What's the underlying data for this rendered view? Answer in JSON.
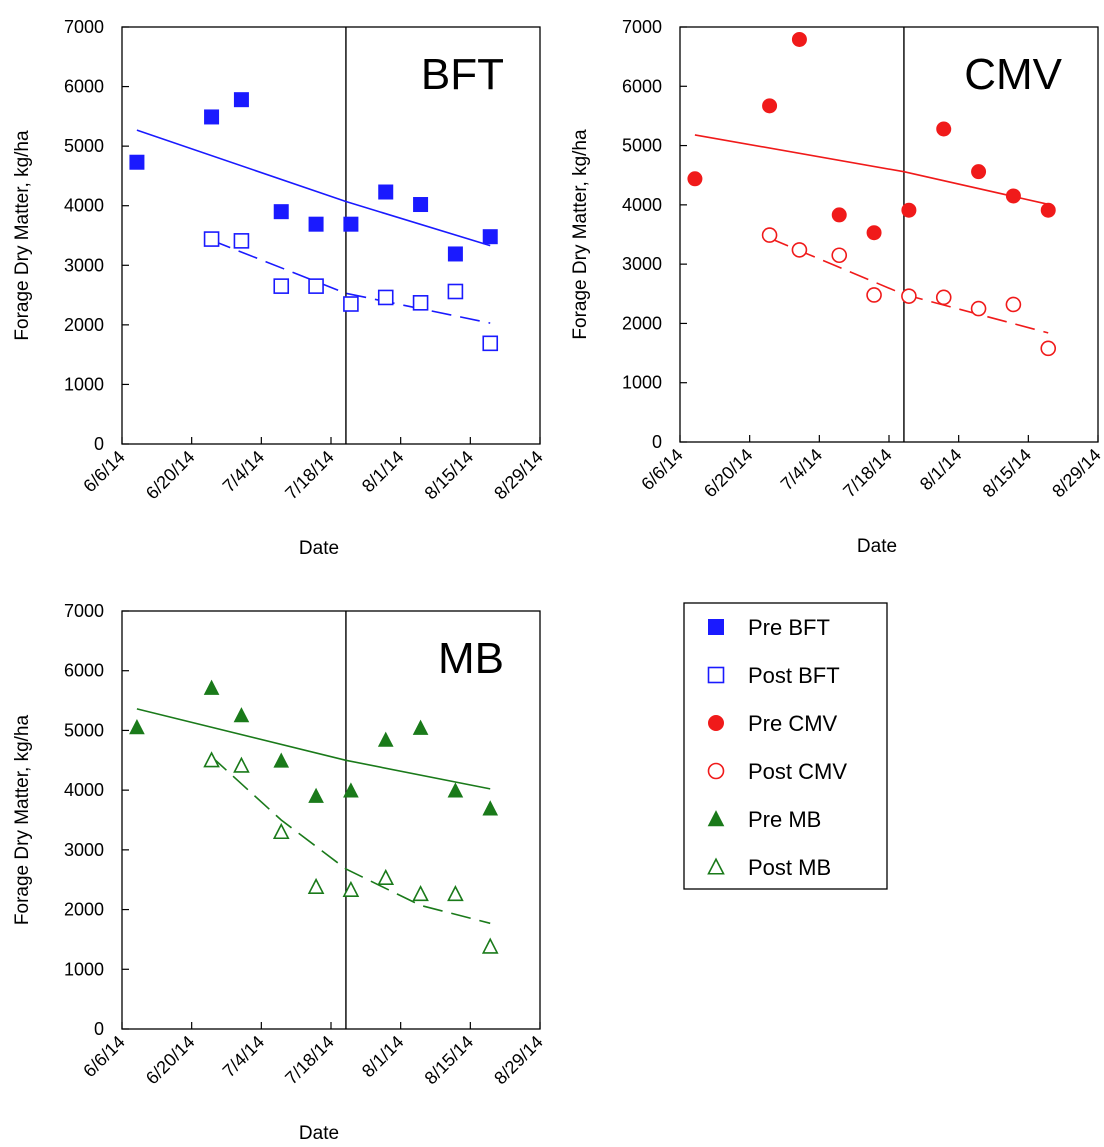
{
  "chart_data": [
    {
      "type": "scatter",
      "title": "BFT",
      "xlabel": "Date",
      "ylabel": "Forage Dry Matter, kg/ha",
      "x_ticks": [
        "6/6/14",
        "6/20/14",
        "7/4/14",
        "7/18/14",
        "8/1/14",
        "8/15/14",
        "8/29/14"
      ],
      "y_ticks": [
        "0",
        "1000",
        "2000",
        "3000",
        "4000",
        "5000",
        "6000",
        "7000"
      ],
      "xlim": [
        "2014-06-06",
        "2014-08-29"
      ],
      "ylim": [
        0,
        7000
      ],
      "vertical_line_date": "2014-07-21",
      "series": [
        {
          "name": "Pre BFT",
          "color": "#1a1aff",
          "marker": "square",
          "filled": true,
          "points": [
            {
              "date": "2014-06-09",
              "value": 4730
            },
            {
              "date": "2014-06-24",
              "value": 5490
            },
            {
              "date": "2014-06-30",
              "value": 5780
            },
            {
              "date": "2014-07-08",
              "value": 3900
            },
            {
              "date": "2014-07-15",
              "value": 3690
            },
            {
              "date": "2014-07-22",
              "value": 3690
            },
            {
              "date": "2014-07-29",
              "value": 4230
            },
            {
              "date": "2014-08-05",
              "value": 4020
            },
            {
              "date": "2014-08-12",
              "value": 3190
            },
            {
              "date": "2014-08-19",
              "value": 3480
            }
          ],
          "trend": {
            "style": "solid",
            "points": [
              {
                "date": "2014-06-09",
                "value": 5270
              },
              {
                "date": "2014-07-21",
                "value": 4070
              },
              {
                "date": "2014-08-19",
                "value": 3330
              }
            ]
          }
        },
        {
          "name": "Post BFT",
          "color": "#1a1aff",
          "marker": "square",
          "filled": false,
          "points": [
            {
              "date": "2014-06-24",
              "value": 3440
            },
            {
              "date": "2014-06-30",
              "value": 3410
            },
            {
              "date": "2014-07-08",
              "value": 2650
            },
            {
              "date": "2014-07-15",
              "value": 2650
            },
            {
              "date": "2014-07-22",
              "value": 2350
            },
            {
              "date": "2014-07-29",
              "value": 2460
            },
            {
              "date": "2014-08-05",
              "value": 2370
            },
            {
              "date": "2014-08-12",
              "value": 2560
            },
            {
              "date": "2014-08-19",
              "value": 1690
            }
          ],
          "trend": {
            "style": "dashed",
            "points": [
              {
                "date": "2014-06-24",
                "value": 3420
              },
              {
                "date": "2014-07-21",
                "value": 2530
              },
              {
                "date": "2014-08-19",
                "value": 2030
              }
            ]
          }
        }
      ]
    },
    {
      "type": "scatter",
      "title": "CMV",
      "xlabel": "Date",
      "ylabel": "Forage Dry Matter, kg/ha",
      "x_ticks": [
        "6/6/14",
        "6/20/14",
        "7/4/14",
        "7/18/14",
        "8/1/14",
        "8/15/14",
        "8/29/14"
      ],
      "y_ticks": [
        "0",
        "1000",
        "2000",
        "3000",
        "4000",
        "5000",
        "6000",
        "7000"
      ],
      "xlim": [
        "2014-06-06",
        "2014-08-29"
      ],
      "ylim": [
        0,
        7000
      ],
      "vertical_line_date": "2014-07-21",
      "series": [
        {
          "name": "Pre CMV",
          "color": "#f01a1a",
          "marker": "circle",
          "filled": true,
          "points": [
            {
              "date": "2014-06-09",
              "value": 4440
            },
            {
              "date": "2014-06-24",
              "value": 5670
            },
            {
              "date": "2014-06-30",
              "value": 6790
            },
            {
              "date": "2014-07-08",
              "value": 3830
            },
            {
              "date": "2014-07-15",
              "value": 3530
            },
            {
              "date": "2014-07-22",
              "value": 3910
            },
            {
              "date": "2014-07-29",
              "value": 5280
            },
            {
              "date": "2014-08-05",
              "value": 4560
            },
            {
              "date": "2014-08-12",
              "value": 4150
            },
            {
              "date": "2014-08-19",
              "value": 3910
            }
          ],
          "trend": {
            "style": "solid",
            "points": [
              {
                "date": "2014-06-09",
                "value": 5180
              },
              {
                "date": "2014-07-21",
                "value": 4560
              },
              {
                "date": "2014-08-19",
                "value": 4010
              }
            ]
          }
        },
        {
          "name": "Post CMV",
          "color": "#f01a1a",
          "marker": "circle",
          "filled": false,
          "points": [
            {
              "date": "2014-06-24",
              "value": 3490
            },
            {
              "date": "2014-06-30",
              "value": 3240
            },
            {
              "date": "2014-07-08",
              "value": 3150
            },
            {
              "date": "2014-07-15",
              "value": 2480
            },
            {
              "date": "2014-07-22",
              "value": 2460
            },
            {
              "date": "2014-07-29",
              "value": 2440
            },
            {
              "date": "2014-08-05",
              "value": 2250
            },
            {
              "date": "2014-08-12",
              "value": 2320
            },
            {
              "date": "2014-08-19",
              "value": 1580
            }
          ],
          "trend": {
            "style": "dashed",
            "points": [
              {
                "date": "2014-06-24",
                "value": 3440
              },
              {
                "date": "2014-07-21",
                "value": 2490
              },
              {
                "date": "2014-08-19",
                "value": 1840
              }
            ]
          }
        }
      ]
    },
    {
      "type": "scatter",
      "title": "MB",
      "xlabel": "Date",
      "ylabel": "Forage Dry Matter, kg/ha",
      "x_ticks": [
        "6/6/14",
        "6/20/14",
        "7/4/14",
        "7/18/14",
        "8/1/14",
        "8/15/14",
        "8/29/14"
      ],
      "y_ticks": [
        "0",
        "1000",
        "2000",
        "3000",
        "4000",
        "5000",
        "6000",
        "7000"
      ],
      "xlim": [
        "2014-06-06",
        "2014-08-29"
      ],
      "ylim": [
        0,
        7000
      ],
      "vertical_line_date": "2014-07-21",
      "series": [
        {
          "name": "Pre MB",
          "color": "#1a7a1a",
          "marker": "triangle",
          "filled": true,
          "points": [
            {
              "date": "2014-06-09",
              "value": 5050
            },
            {
              "date": "2014-06-24",
              "value": 5710
            },
            {
              "date": "2014-06-30",
              "value": 5250
            },
            {
              "date": "2014-07-08",
              "value": 4490
            },
            {
              "date": "2014-07-15",
              "value": 3900
            },
            {
              "date": "2014-07-22",
              "value": 3990
            },
            {
              "date": "2014-07-29",
              "value": 4840
            },
            {
              "date": "2014-08-05",
              "value": 5040
            },
            {
              "date": "2014-08-12",
              "value": 3990
            },
            {
              "date": "2014-08-19",
              "value": 3690
            }
          ],
          "trend": {
            "style": "solid",
            "points": [
              {
                "date": "2014-06-09",
                "value": 5360
              },
              {
                "date": "2014-07-21",
                "value": 4500
              },
              {
                "date": "2014-08-19",
                "value": 4020
              }
            ]
          }
        },
        {
          "name": "Post MB",
          "color": "#1a7a1a",
          "marker": "triangle",
          "filled": false,
          "points": [
            {
              "date": "2014-06-24",
              "value": 4500
            },
            {
              "date": "2014-06-30",
              "value": 4410
            },
            {
              "date": "2014-07-08",
              "value": 3300
            },
            {
              "date": "2014-07-15",
              "value": 2380
            },
            {
              "date": "2014-07-22",
              "value": 2330
            },
            {
              "date": "2014-07-29",
              "value": 2530
            },
            {
              "date": "2014-08-05",
              "value": 2260
            },
            {
              "date": "2014-08-12",
              "value": 2260
            },
            {
              "date": "2014-08-19",
              "value": 1380
            }
          ],
          "trend": {
            "style": "dashed",
            "points": [
              {
                "date": "2014-06-24",
                "value": 4560
              },
              {
                "date": "2014-07-08",
                "value": 3500
              },
              {
                "date": "2014-07-21",
                "value": 2680
              },
              {
                "date": "2014-08-05",
                "value": 2070
              },
              {
                "date": "2014-08-19",
                "value": 1770
              }
            ]
          }
        }
      ]
    }
  ],
  "legend": {
    "position": "right of bottom-left panel",
    "items": [
      {
        "label": "Pre BFT",
        "color": "#1a1aff",
        "marker": "square",
        "filled": true
      },
      {
        "label": "Post BFT",
        "color": "#1a1aff",
        "marker": "square",
        "filled": false
      },
      {
        "label": "Pre CMV",
        "color": "#f01a1a",
        "marker": "circle",
        "filled": true
      },
      {
        "label": "Post CMV",
        "color": "#f01a1a",
        "marker": "circle",
        "filled": false
      },
      {
        "label": "Pre MB",
        "color": "#1a7a1a",
        "marker": "triangle",
        "filled": true
      },
      {
        "label": "Post MB",
        "color": "#1a7a1a",
        "marker": "triangle",
        "filled": false
      }
    ]
  }
}
